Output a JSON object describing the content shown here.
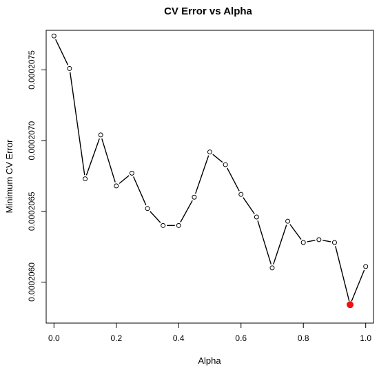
{
  "chart_data": {
    "type": "line",
    "title": "CV Error vs Alpha",
    "xlabel": "Alpha",
    "ylabel": "Minimum CV Error",
    "xlim": [
      -0.025,
      1.025
    ],
    "ylim": [
      0.00020571,
      0.00020778
    ],
    "x_ticks": [
      0.0,
      0.2,
      0.4,
      0.6,
      0.8,
      1.0
    ],
    "x_tick_labels": [
      "0.0",
      "0.2",
      "0.4",
      "0.6",
      "0.8",
      "1.0"
    ],
    "y_ticks": [
      0.000206,
      0.0002065,
      0.000207,
      0.0002075
    ],
    "y_tick_labels": [
      "0.0002060",
      "0.0002065",
      "0.0002070",
      "0.0002075"
    ],
    "grid": false,
    "series": [
      {
        "x": [
          0.0,
          0.05,
          0.1,
          0.15,
          0.2,
          0.25,
          0.3,
          0.35,
          0.4,
          0.45,
          0.5,
          0.55,
          0.6,
          0.65,
          0.7,
          0.75,
          0.8,
          0.85,
          0.9,
          0.95,
          1.0
        ],
        "y": [
          0.00020774,
          0.00020751,
          0.00020673,
          0.00020704,
          0.00020668,
          0.00020677,
          0.00020652,
          0.0002064,
          0.0002064,
          0.0002066,
          0.00020692,
          0.00020683,
          0.00020662,
          0.00020646,
          0.0002061,
          0.00020643,
          0.00020628,
          0.0002063,
          0.00020628,
          0.00020584,
          0.00020611
        ]
      }
    ],
    "highlight": {
      "x": 0.95,
      "y": 0.00020584,
      "color": "#ee1111"
    }
  }
}
